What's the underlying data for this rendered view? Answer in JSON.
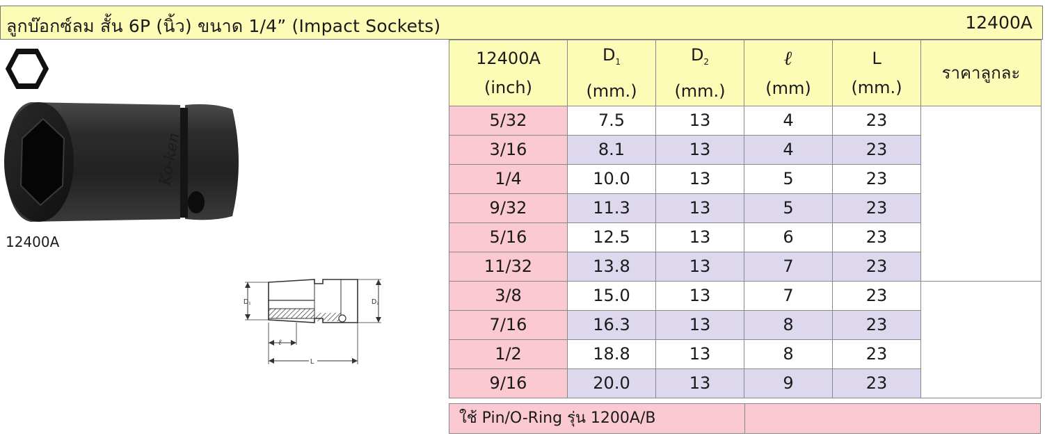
{
  "header": {
    "title": "ลูกบ๊อกซ์ลม สั้น 6P (นิ้ว) ขนาด 1/4” (Impact Sockets)",
    "code": "12400A"
  },
  "product": {
    "label": "12400A",
    "hex_icon": "hexagon-icon",
    "drawing_labels": {
      "d1": "D₁",
      "d2": "D₂",
      "ell": "ℓ",
      "l": "L"
    }
  },
  "table": {
    "headers": {
      "model": "12400A",
      "model_unit": "(inch)",
      "d1": "D",
      "d1_sub": "1",
      "d1_unit": "(mm.)",
      "d2": "D",
      "d2_sub": "2",
      "d2_unit": "(mm.)",
      "ell": "ℓ",
      "ell_unit": "(mm)",
      "l": "L",
      "l_unit": "(mm.)",
      "price": "ราคาลูกละ"
    },
    "rows": [
      {
        "size": "5/32",
        "d1": "7.5",
        "d2": "13",
        "ell": "4",
        "l": "23"
      },
      {
        "size": "3/16",
        "d1": "8.1",
        "d2": "13",
        "ell": "4",
        "l": "23"
      },
      {
        "size": "1/4",
        "d1": "10.0",
        "d2": "13",
        "ell": "5",
        "l": "23"
      },
      {
        "size": "9/32",
        "d1": "11.3",
        "d2": "13",
        "ell": "5",
        "l": "23"
      },
      {
        "size": "5/16",
        "d1": "12.5",
        "d2": "13",
        "ell": "6",
        "l": "23"
      },
      {
        "size": "11/32",
        "d1": "13.8",
        "d2": "13",
        "ell": "7",
        "l": "23"
      },
      {
        "size": "3/8",
        "d1": "15.0",
        "d2": "13",
        "ell": "7",
        "l": "23"
      },
      {
        "size": "7/16",
        "d1": "16.3",
        "d2": "13",
        "ell": "8",
        "l": "23"
      },
      {
        "size": "1/2",
        "d1": "18.8",
        "d2": "13",
        "ell": "8",
        "l": "23"
      },
      {
        "size": "9/16",
        "d1": "20.0",
        "d2": "13",
        "ell": "9",
        "l": "23"
      }
    ]
  },
  "footer": {
    "note": "ใช้ Pin/O-Ring รุ่น 1200A/B"
  },
  "colors": {
    "header_bg": "#fdfcb6",
    "size_bg": "#fbc9d1",
    "alt_row_bg": "#ddd8ee",
    "border": "#888888"
  }
}
